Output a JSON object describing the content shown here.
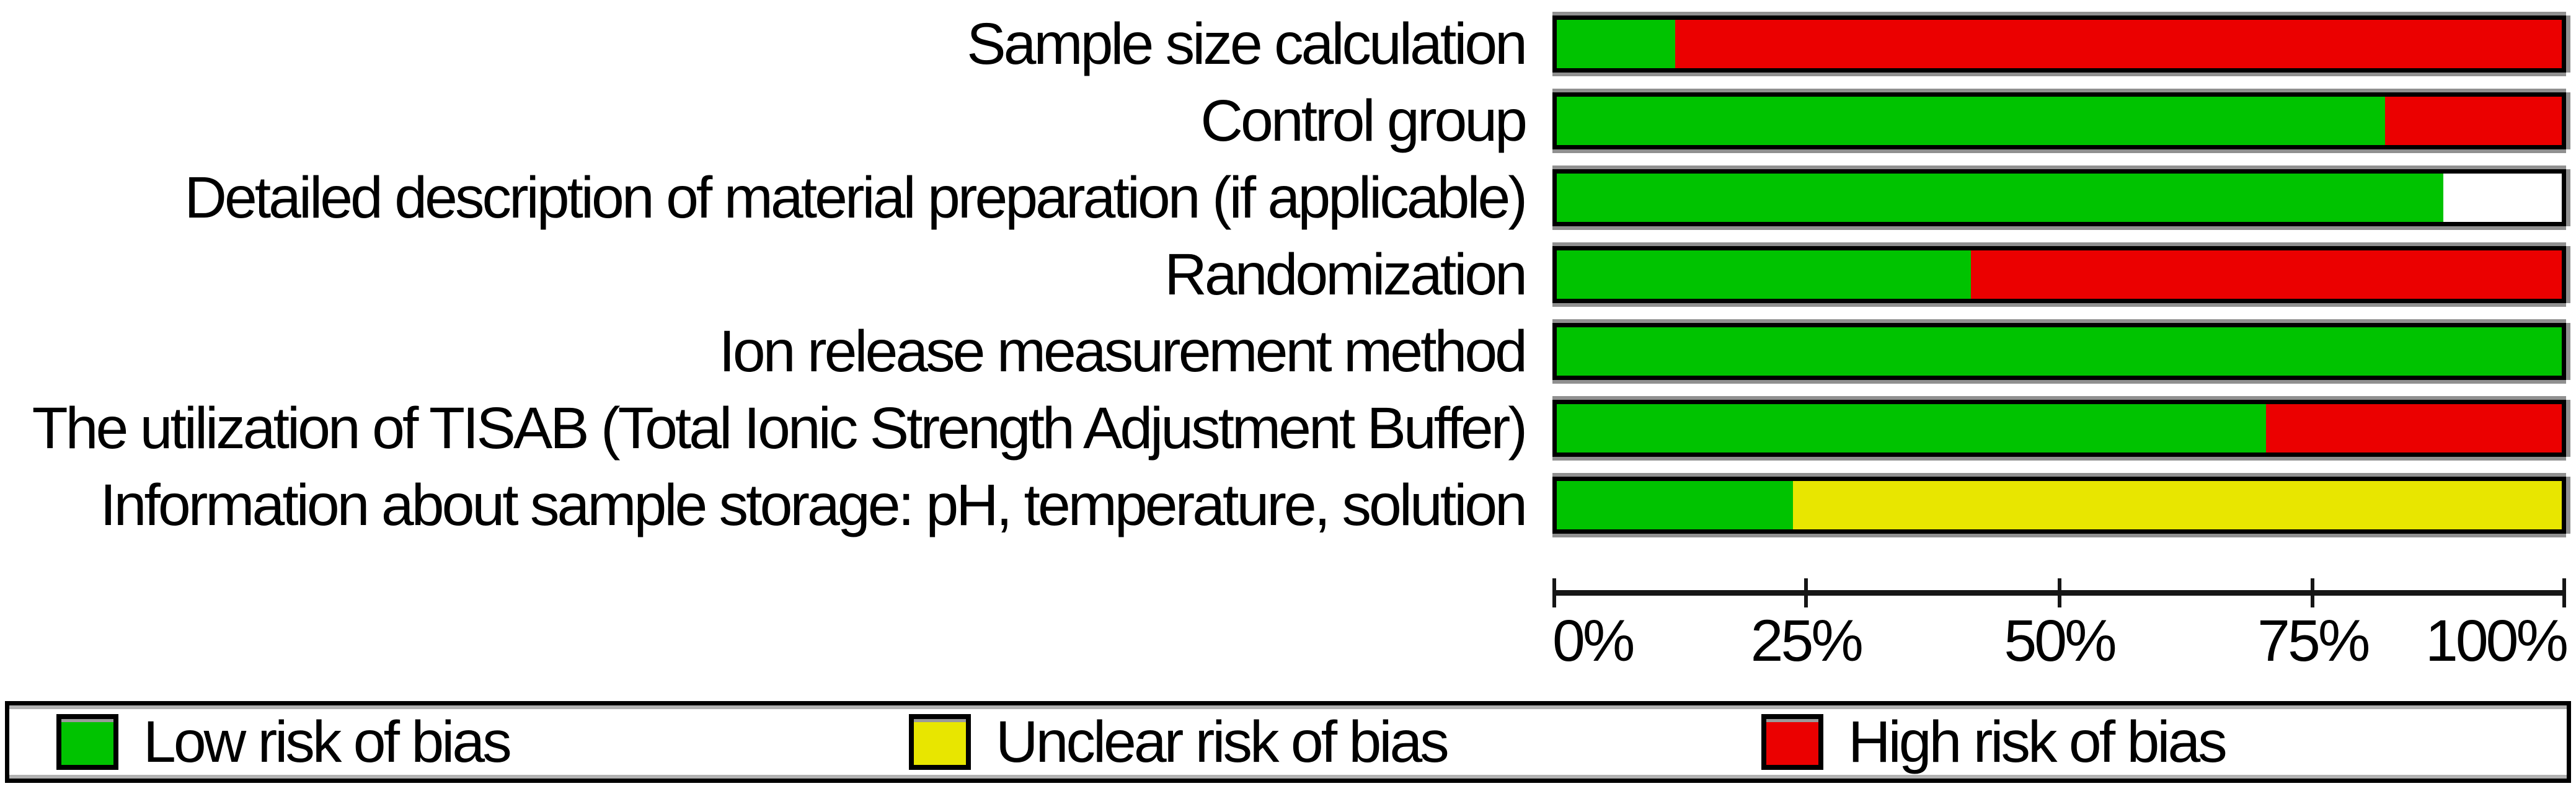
{
  "figure": {
    "background": "#ffffff"
  },
  "colors": {
    "low": "#00c300",
    "unclear": "#e8e600",
    "high": "#eb0000",
    "blank": "#ffffff",
    "border": "#000000",
    "shadow_gray": "#909090"
  },
  "chart_data": {
    "type": "bar",
    "orientation": "horizontal",
    "stacked": true,
    "categories": [
      "Sample size calculation",
      "Control group",
      "Detailed description of material preparation (if applicable)",
      "Randomization",
      "Ion release measurement method",
      "The utilization of TISAB (Total Ionic Strength Adjustment Buffer)",
      "Information about sample storage: pH, temperature, solution"
    ],
    "series": [
      {
        "name": "Low risk of bias",
        "key": "low",
        "color": "#00c300",
        "values_pct": [
          11.8,
          82.4,
          88.2,
          41.2,
          100,
          70.6,
          23.5
        ]
      },
      {
        "name": "Unclear risk of bias",
        "key": "unclear",
        "color": "#e8e600",
        "values_pct": [
          0,
          0,
          0,
          0,
          0,
          0,
          76.5
        ]
      },
      {
        "name": "High risk of bias",
        "key": "high",
        "color": "#eb0000",
        "values_pct": [
          88.2,
          17.6,
          0,
          58.8,
          0,
          29.4,
          0
        ]
      },
      {
        "name": "Blank",
        "key": "blank",
        "color": "#ffffff",
        "values_pct": [
          0,
          0,
          11.8,
          0,
          0,
          0,
          0
        ]
      }
    ],
    "x_axis": {
      "min": 0,
      "max": 100,
      "tick_labels": [
        "0%",
        "25%",
        "50%",
        "75%",
        "100%"
      ]
    },
    "grid": false,
    "legend_position": "bottom",
    "legend_items": [
      {
        "label": "Low risk of bias",
        "color": "#00c300"
      },
      {
        "label": "Unclear risk of bias",
        "color": "#e8e600"
      },
      {
        "label": "High risk of bias",
        "color": "#eb0000"
      }
    ]
  }
}
